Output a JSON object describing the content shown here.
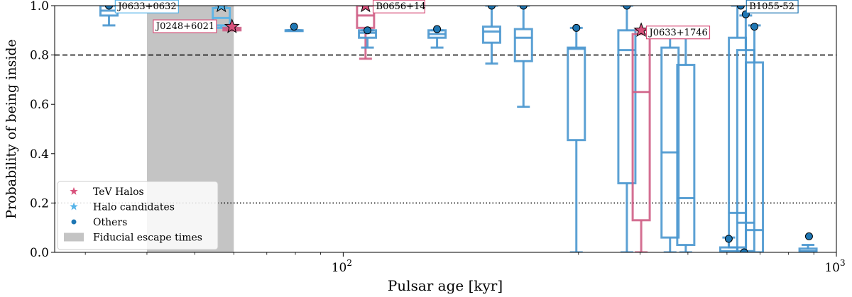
{
  "chart_data": {
    "type": "box",
    "title": "",
    "xlabel": "Pulsar age [kyr]",
    "ylabel": "Probability of being inside",
    "xscale": "log",
    "xlim": [
      26,
      1000
    ],
    "ylim": [
      0,
      1.0
    ],
    "xticks": [
      {
        "value": 100,
        "base": "10",
        "exp": "2"
      },
      {
        "value": 1000,
        "base": "10",
        "exp": "3"
      }
    ],
    "yticks": [
      "0.0",
      "0.2",
      "0.4",
      "0.6",
      "0.8",
      "1.0"
    ],
    "hlines": [
      {
        "name": "threshold-dashed",
        "y": 0.8,
        "style": "dashed"
      },
      {
        "name": "threshold-dotted",
        "y": 0.2,
        "style": "dotted"
      }
    ],
    "shaded_band": {
      "label": "Fiducial escape times",
      "x0": 40,
      "x1": 60,
      "color": "#c4c4c4"
    },
    "colors": {
      "tev_halo": "#d8527c",
      "candidate": "#56b4e9",
      "other": "#1f77b4",
      "box": "#4a97cf",
      "tev_box": "#cf5f86"
    },
    "legend": {
      "position": "lower-left",
      "items": [
        {
          "label": "TeV Halos",
          "marker": "star",
          "color": "#d8527c"
        },
        {
          "label": "Halo candidates",
          "marker": "star",
          "color": "#56b4e9"
        },
        {
          "label": "Others",
          "marker": "dot",
          "color": "#1f77b4"
        },
        {
          "label": "Fiducial escape times",
          "marker": "patch",
          "color": "#c4c4c4"
        }
      ]
    },
    "boxes": [
      {
        "age": 33.5,
        "wlo": 0.92,
        "q1": 0.96,
        "med": 0.98,
        "q3": 1.0,
        "whi": 1.0,
        "kind": "other"
      },
      {
        "age": 56.6,
        "wlo": 0.91,
        "q1": 0.92,
        "med": 0.95,
        "q3": 0.99,
        "whi": 1.0,
        "kind": "candidate"
      },
      {
        "age": 59.5,
        "wlo": 0.9,
        "q1": 0.9,
        "med": 0.905,
        "q3": 0.91,
        "whi": 0.91,
        "kind": "tev"
      },
      {
        "age": 79.5,
        "wlo": 0.9,
        "q1": 0.9,
        "med": 0.9,
        "q3": 0.9,
        "whi": 0.9,
        "kind": "other"
      },
      {
        "age": 111,
        "wlo": 0.785,
        "q1": 0.91,
        "med": 0.96,
        "q3": 1.0,
        "whi": 1.0,
        "kind": "tev"
      },
      {
        "age": 112,
        "wlo": 0.83,
        "q1": 0.87,
        "med": 0.89,
        "q3": 0.9,
        "whi": 0.9,
        "kind": "other"
      },
      {
        "age": 155,
        "wlo": 0.83,
        "q1": 0.87,
        "med": 0.885,
        "q3": 0.9,
        "whi": 0.9,
        "kind": "other"
      },
      {
        "age": 200,
        "wlo": 0.765,
        "q1": 0.85,
        "med": 0.895,
        "q3": 0.915,
        "whi": 1.0,
        "kind": "other"
      },
      {
        "age": 232,
        "wlo": 0.59,
        "q1": 0.775,
        "med": 0.87,
        "q3": 0.905,
        "whi": 1.0,
        "kind": "other"
      },
      {
        "age": 297,
        "wlo": 0.0,
        "q1": 0.455,
        "med": 0.825,
        "q3": 0.83,
        "whi": 0.91,
        "kind": "other"
      },
      {
        "age": 376,
        "wlo": 0.0,
        "q1": 0.28,
        "med": 0.82,
        "q3": 0.9,
        "whi": 1.0,
        "kind": "other"
      },
      {
        "age": 402,
        "wlo": 0.0,
        "q1": 0.13,
        "med": 0.65,
        "q3": 0.885,
        "whi": 0.9,
        "kind": "tev"
      },
      {
        "age": 460,
        "wlo": 0.0,
        "q1": 0.06,
        "med": 0.405,
        "q3": 0.83,
        "whi": 0.9,
        "kind": "other"
      },
      {
        "age": 495,
        "wlo": 0.0,
        "q1": 0.03,
        "med": 0.22,
        "q3": 0.76,
        "whi": 0.9,
        "kind": "other"
      },
      {
        "age": 605,
        "wlo": 0.0,
        "q1": 0.0,
        "med": 0.005,
        "q3": 0.02,
        "whi": 0.06,
        "kind": "other"
      },
      {
        "age": 630,
        "wlo": 0.0,
        "q1": 0.02,
        "med": 0.16,
        "q3": 0.87,
        "whi": 1.0,
        "kind": "other"
      },
      {
        "age": 655,
        "wlo": 0.0,
        "q1": 0.005,
        "med": 0.12,
        "q3": 0.82,
        "whi": 0.96,
        "kind": "other"
      },
      {
        "age": 682,
        "wlo": 0.0,
        "q1": 0.0,
        "med": 0.09,
        "q3": 0.77,
        "whi": 0.92,
        "kind": "other"
      },
      {
        "age": 876,
        "wlo": 0.0,
        "q1": 0.0,
        "med": 0.005,
        "q3": 0.015,
        "whi": 0.03,
        "kind": "other"
      }
    ],
    "points": [
      {
        "age": 33.5,
        "p": 1.0,
        "kind": "other"
      },
      {
        "age": 56.6,
        "p": 1.0,
        "kind": "candidate"
      },
      {
        "age": 59.5,
        "p": 0.915,
        "kind": "tev"
      },
      {
        "age": 79.5,
        "p": 0.915,
        "kind": "other"
      },
      {
        "age": 111,
        "p": 1.0,
        "kind": "tev"
      },
      {
        "age": 112,
        "p": 0.9,
        "kind": "other"
      },
      {
        "age": 155,
        "p": 0.905,
        "kind": "other"
      },
      {
        "age": 200,
        "p": 1.0,
        "kind": "other"
      },
      {
        "age": 232,
        "p": 1.0,
        "kind": "other"
      },
      {
        "age": 297,
        "p": 0.91,
        "kind": "other"
      },
      {
        "age": 376,
        "p": 1.0,
        "kind": "other"
      },
      {
        "age": 402,
        "p": 0.9,
        "kind": "tev"
      },
      {
        "age": 460,
        "p": 0.9,
        "kind": "other"
      },
      {
        "age": 495,
        "p": 0.9,
        "kind": "other"
      },
      {
        "age": 605,
        "p": 0.055,
        "kind": "other"
      },
      {
        "age": 640,
        "p": 1.0,
        "kind": "other"
      },
      {
        "age": 655,
        "p": 0.965,
        "kind": "other"
      },
      {
        "age": 650,
        "p": 0.0,
        "kind": "other"
      },
      {
        "age": 682,
        "p": 0.915,
        "kind": "other"
      },
      {
        "age": 880,
        "p": 0.065,
        "kind": "other"
      }
    ],
    "annotations": [
      {
        "text": "J0633+0632",
        "age": 34.5,
        "p": 0.985,
        "kind": "candidate"
      },
      {
        "text": "J0248+6021",
        "age": 41.2,
        "p": 0.905,
        "kind": "tev"
      },
      {
        "text": "B0656+14",
        "age": 115,
        "p": 0.985,
        "kind": "tev"
      },
      {
        "text": "J0633+1746",
        "age": 412,
        "p": 0.88,
        "kind": "tev"
      },
      {
        "text": "B1055-52",
        "age": 657,
        "p": 0.985,
        "kind": "other"
      }
    ]
  }
}
